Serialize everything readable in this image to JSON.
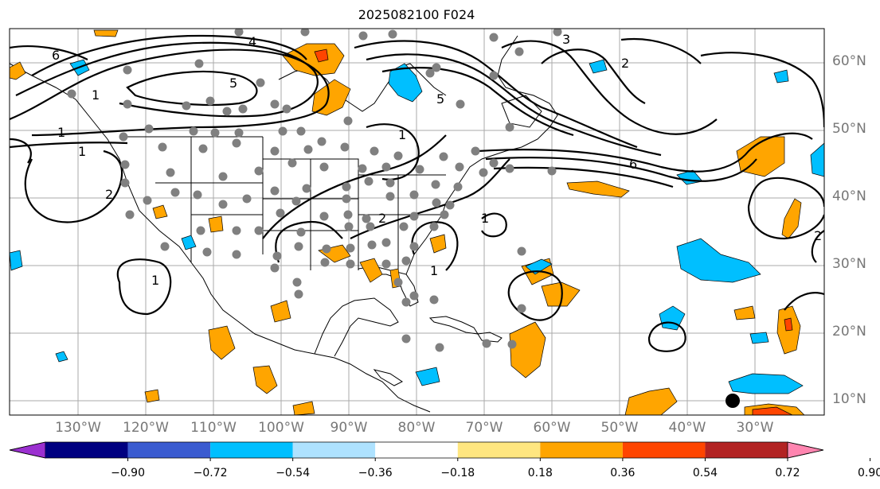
{
  "title": "2025082100 F024",
  "lat_labels": [
    "60°N",
    "50°N",
    "40°N",
    "30°N",
    "20°N",
    "10°N"
  ],
  "lon_labels": [
    "130°W",
    "120°W",
    "110°W",
    "100°W",
    "90°W",
    "80°W",
    "70°W",
    "60°W",
    "50°W",
    "40°W",
    "30°W"
  ],
  "colorbar": {
    "ticks": [
      "−0.90",
      "−0.72",
      "−0.54",
      "−0.36",
      "−0.18",
      "0.18",
      "0.36",
      "0.54",
      "0.72",
      "0.90"
    ],
    "colors": [
      "#9b30d0",
      "#000080",
      "#3a5bd0",
      "#00bfff",
      "#aee2ff",
      "#ffffff",
      "#ffe680",
      "#ffa500",
      "#ff4500",
      "#b22222",
      "#ff85b0"
    ]
  },
  "contour_labels": [
    "6",
    "5",
    "4",
    "3",
    "2",
    "1",
    "1",
    "1",
    "2",
    "2",
    "1",
    "1",
    "1",
    "5",
    "6",
    "1",
    "2"
  ]
}
